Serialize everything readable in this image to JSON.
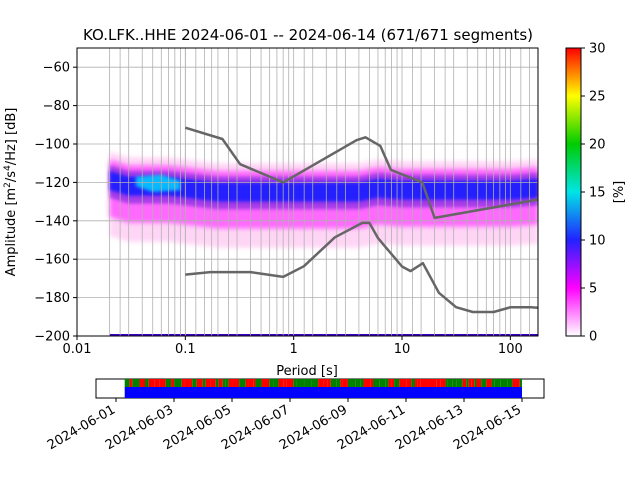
{
  "chart_data": {
    "type": "heatmap",
    "title": "KO.LFK..HHE   2024-06-01 -- 2024-06-14  (671/671 segments)",
    "xlabel": "Period [s]",
    "ylabel_main": "Amplitude [m",
    "ylabel_sup1": "2",
    "ylabel_mid": "/s",
    "ylabel_sup2": "4",
    "ylabel_end": "/Hz] [dB]",
    "x_scale": "log",
    "xlim": [
      0.01,
      180
    ],
    "ylim": [
      -200,
      -50
    ],
    "x_ticks": [
      {
        "value": 0.01,
        "label": "0.01"
      },
      {
        "value": 0.1,
        "label": "0.1"
      },
      {
        "value": 1,
        "label": "1"
      },
      {
        "value": 10,
        "label": "10"
      },
      {
        "value": 100,
        "label": "100"
      }
    ],
    "y_ticks": [
      {
        "value": -60,
        "label": "−60"
      },
      {
        "value": -80,
        "label": "−80"
      },
      {
        "value": -100,
        "label": "−100"
      },
      {
        "value": -120,
        "label": "−120"
      },
      {
        "value": -140,
        "label": "−140"
      },
      {
        "value": -160,
        "label": "−160"
      },
      {
        "value": -180,
        "label": "−180"
      },
      {
        "value": -200,
        "label": "−200"
      }
    ],
    "grid": true,
    "period_gridlines": [
      0.02,
      0.025,
      0.03,
      0.04,
      0.05,
      0.06,
      0.07,
      0.08,
      0.09,
      0.1,
      0.125,
      0.15,
      0.175,
      0.2,
      0.25,
      0.3,
      0.4,
      0.5,
      0.6,
      0.7,
      0.8,
      0.9,
      1.25,
      1.5,
      2,
      2.5,
      3,
      4,
      5,
      6,
      7,
      8,
      9,
      12.5,
      15,
      20,
      25,
      30,
      40,
      50,
      60,
      70,
      80,
      90,
      125,
      150
    ],
    "colorbar": {
      "label": "[%]",
      "range": [
        0,
        30
      ],
      "ticks": [
        {
          "value": 0,
          "label": "0"
        },
        {
          "value": 5,
          "label": "5"
        },
        {
          "value": 10,
          "label": "10"
        },
        {
          "value": 15,
          "label": "15"
        },
        {
          "value": 20,
          "label": "20"
        },
        {
          "value": 25,
          "label": "25"
        },
        {
          "value": 30,
          "label": "30"
        }
      ],
      "colormap": [
        "#ffffff",
        "#ff00ff",
        "#2222ff",
        "#00e5e5",
        "#00cc00",
        "#ffff00",
        "#ff0000"
      ]
    },
    "nhnm": {
      "period": [
        0.1,
        0.22,
        0.32,
        0.8,
        3.8,
        4.6,
        6.3,
        7.9,
        15.4,
        20,
        354
      ],
      "db": [
        -91.5,
        -97.4,
        -110.5,
        -120.0,
        -98.0,
        -96.5,
        -101.0,
        -113.5,
        -120.0,
        -138.5,
        -126.0
      ]
    },
    "nlnm": {
      "period": [
        0.1,
        0.17,
        0.4,
        0.8,
        1.24,
        2.4,
        4.3,
        5,
        6,
        10,
        12,
        15.6,
        21.9,
        31.6,
        45,
        70,
        101,
        154,
        180
      ],
      "db": [
        -168.0,
        -166.7,
        -166.7,
        -169.2,
        -163.7,
        -148.6,
        -141.1,
        -141.1,
        -149.0,
        -163.8,
        -166.2,
        -162.1,
        -177.5,
        -185.0,
        -187.5,
        -187.5,
        -185.0,
        -185.0,
        -185.3
      ]
    },
    "density_band": {
      "period": [
        0.02,
        0.03,
        0.05,
        0.07,
        0.1,
        0.2,
        0.5,
        1,
        2,
        4,
        6,
        10,
        20,
        50,
        100,
        180
      ],
      "median_db": [
        -118,
        -121,
        -121,
        -121,
        -122,
        -124,
        -124,
        -124,
        -124,
        -124,
        -122,
        -123,
        -123,
        -123,
        -123,
        -122
      ]
    },
    "segments_timeline": {
      "date_ticks": [
        "2024-06-01",
        "2024-06-03",
        "2024-06-05",
        "2024-06-07",
        "2024-06-09",
        "2024-06-11",
        "2024-06-13",
        "2024-06-15"
      ],
      "range_days": [
        0,
        14
      ],
      "covered": [
        0.3,
        14
      ],
      "colors": {
        "data": "#0000ff",
        "gap_a": "#008000",
        "gap_b": "#ff0000"
      }
    }
  }
}
